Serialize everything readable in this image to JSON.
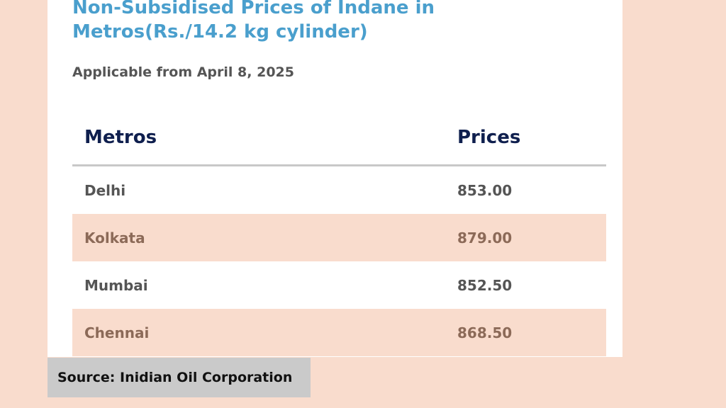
{
  "header": {
    "title": "Non-Subsidised Prices of Indane in Metros(Rs./14.2 kg cylinder)",
    "subtitle": "Applicable from April 8, 2025"
  },
  "table": {
    "columns": [
      "Metros",
      "Prices"
    ],
    "rows": [
      {
        "metro": "Delhi",
        "price": "853.00"
      },
      {
        "metro": "Kolkata",
        "price": "879.00"
      },
      {
        "metro": "Mumbai",
        "price": "852.50"
      },
      {
        "metro": "Chennai",
        "price": "868.50"
      }
    ]
  },
  "footer": {
    "source": "Source: Inidian Oil Corporation"
  },
  "colors": {
    "background": "#f9dccd",
    "title": "#4a9fcd",
    "header_text": "#0f1f4e",
    "shaded_row": "#f9dccd",
    "source_box": "#cacaca"
  }
}
